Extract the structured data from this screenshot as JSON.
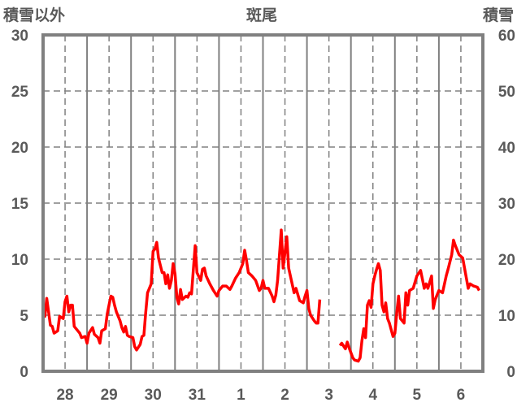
{
  "chart_data": {
    "type": "line",
    "title": "斑尾",
    "ylabel_left": "積雪以外",
    "ylabel_right": "積雪",
    "ylim_left": [
      0,
      30
    ],
    "ylim_right": [
      0,
      60
    ],
    "yticks_left": [
      "0",
      "5",
      "10",
      "15",
      "20",
      "25",
      "30"
    ],
    "yticks_right": [
      "0",
      "10",
      "20",
      "30",
      "40",
      "50",
      "60"
    ],
    "x_unit": "hours since start of day 28",
    "xlim": [
      0,
      240
    ],
    "xtick_labels": [
      "28",
      "29",
      "30",
      "31",
      "1",
      "2",
      "3",
      "4",
      "5",
      "6"
    ],
    "grid": true,
    "colors": {
      "series_other": "#ff0000",
      "series_snow": "#7030a0",
      "frame": "#808080",
      "text": "#595959"
    },
    "series": [
      {
        "name": "積雪以外",
        "axis": "left",
        "segments": [
          [
            [
              0,
              5.2
            ],
            [
              1,
              4.9
            ],
            [
              2,
              6.5
            ],
            [
              4,
              4.1
            ],
            [
              5,
              4.0
            ],
            [
              6,
              3.4
            ],
            [
              8,
              3.6
            ],
            [
              9,
              4.9
            ],
            [
              11,
              4.7
            ],
            [
              12,
              6.2
            ],
            [
              13,
              6.7
            ],
            [
              14,
              5.3
            ],
            [
              15,
              5.9
            ],
            [
              16,
              5.9
            ],
            [
              17,
              4.0
            ],
            [
              19,
              3.6
            ],
            [
              20,
              3.4
            ],
            [
              21,
              3.0
            ],
            [
              23,
              3.1
            ],
            [
              24,
              2.5
            ],
            [
              25,
              3.4
            ],
            [
              27,
              3.9
            ],
            [
              28,
              3.3
            ],
            [
              30,
              3.0
            ],
            [
              31,
              2.5
            ],
            [
              32,
              3.6
            ],
            [
              34,
              3.8
            ],
            [
              35,
              5.1
            ],
            [
              36,
              5.9
            ],
            [
              37,
              6.7
            ],
            [
              38,
              6.6
            ],
            [
              39,
              5.9
            ],
            [
              40,
              5.3
            ],
            [
              42,
              4.5
            ],
            [
              43,
              3.9
            ],
            [
              44,
              3.5
            ],
            [
              45,
              4.0
            ],
            [
              46,
              3.2
            ],
            [
              47,
              3.1
            ],
            [
              49,
              3.0
            ],
            [
              50,
              2.2
            ],
            [
              51,
              1.9
            ],
            [
              53,
              2.4
            ],
            [
              54,
              3.1
            ],
            [
              55,
              3.2
            ],
            [
              56,
              5.2
            ],
            [
              57,
              7.0
            ],
            [
              59,
              7.8
            ],
            [
              60,
              10.7
            ],
            [
              61,
              10.9
            ],
            [
              62,
              11.5
            ],
            [
              63,
              10.1
            ],
            [
              65,
              8.8
            ],
            [
              66,
              8.8
            ],
            [
              67,
              7.8
            ],
            [
              68,
              8.6
            ],
            [
              69,
              7.4
            ],
            [
              70,
              8.1
            ],
            [
              71,
              9.6
            ],
            [
              72,
              8.7
            ],
            [
              73,
              6.6
            ],
            [
              74,
              6.0
            ],
            [
              75,
              7.3
            ],
            [
              76,
              6.4
            ],
            [
              78,
              6.7
            ],
            [
              79,
              6.6
            ],
            [
              80,
              7.0
            ],
            [
              81,
              6.9
            ],
            [
              83,
              11.2
            ],
            [
              84,
              8.8
            ],
            [
              86,
              8.1
            ],
            [
              87,
              9.1
            ],
            [
              88,
              9.2
            ],
            [
              89,
              8.5
            ],
            [
              91,
              7.8
            ],
            [
              93,
              7.2
            ],
            [
              95,
              6.7
            ],
            [
              96,
              7.2
            ],
            [
              98,
              7.6
            ],
            [
              100,
              7.6
            ],
            [
              102,
              7.3
            ],
            [
              103,
              7.6
            ],
            [
              105,
              8.3
            ],
            [
              107,
              8.8
            ],
            [
              109,
              9.6
            ],
            [
              110,
              10.8
            ],
            [
              111,
              9.9
            ],
            [
              112,
              8.8
            ],
            [
              114,
              8.5
            ],
            [
              116,
              8.1
            ],
            [
              118,
              7.2
            ],
            [
              119,
              7.4
            ],
            [
              120,
              8.1
            ],
            [
              121,
              7.4
            ],
            [
              123,
              7.4
            ],
            [
              125,
              6.7
            ],
            [
              126,
              6.2
            ],
            [
              127,
              6.8
            ],
            [
              128,
              8.1
            ],
            [
              130,
              12.6
            ],
            [
              131,
              9.2
            ],
            [
              133,
              12.0
            ],
            [
              134,
              9.2
            ],
            [
              137,
              7.0
            ],
            [
              138,
              7.4
            ],
            [
              140,
              6.3
            ],
            [
              142,
              6.1
            ],
            [
              143,
              6.7
            ],
            [
              144,
              7.2
            ],
            [
              145,
              5.6
            ],
            [
              146,
              5.0
            ],
            [
              148,
              4.5
            ],
            [
              149,
              4.3
            ],
            [
              150,
              4.3
            ],
            [
              151,
              6.4
            ]
          ],
          [
            [
              162,
              2.3
            ],
            [
              163,
              2.5
            ],
            [
              165,
              2.0
            ],
            [
              166,
              2.6
            ],
            [
              167,
              2.1
            ],
            [
              169,
              1.2
            ],
            [
              170,
              1.0
            ],
            [
              172,
              0.9
            ],
            [
              173,
              1.2
            ],
            [
              174,
              2.7
            ],
            [
              175,
              3.8
            ],
            [
              176,
              3.0
            ],
            [
              177,
              5.9
            ],
            [
              178,
              6.3
            ],
            [
              179,
              5.7
            ],
            [
              180,
              7.8
            ],
            [
              181,
              8.5
            ],
            [
              182,
              9.1
            ],
            [
              183,
              9.6
            ],
            [
              184,
              9.0
            ],
            [
              185,
              5.9
            ],
            [
              186,
              5.3
            ],
            [
              187,
              6.1
            ],
            [
              188,
              4.7
            ],
            [
              189,
              4.3
            ],
            [
              191,
              3.1
            ],
            [
              192,
              3.4
            ],
            [
              193,
              5.2
            ],
            [
              194,
              6.7
            ],
            [
              195,
              4.7
            ],
            [
              197,
              4.3
            ],
            [
              198,
              7.0
            ],
            [
              199,
              5.9
            ],
            [
              200,
              7.2
            ],
            [
              202,
              7.4
            ],
            [
              204,
              8.5
            ],
            [
              206,
              9.0
            ],
            [
              208,
              7.4
            ],
            [
              209,
              7.8
            ],
            [
              210,
              7.4
            ],
            [
              212,
              8.5
            ],
            [
              213,
              5.6
            ],
            [
              214,
              6.4
            ],
            [
              216,
              7.2
            ],
            [
              218,
              7.0
            ],
            [
              220,
              8.5
            ],
            [
              221,
              9.1
            ],
            [
              223,
              10.4
            ],
            [
              224,
              11.7
            ],
            [
              225,
              11.2
            ],
            [
              227,
              10.4
            ],
            [
              229,
              10.1
            ],
            [
              232,
              7.4
            ],
            [
              233,
              7.8
            ],
            [
              235,
              7.6
            ],
            [
              237,
              7.5
            ],
            [
              238,
              7.2
            ]
          ]
        ]
      },
      {
        "name": "積雪",
        "axis": "right",
        "segments": [
          [
            [
              0,
              0
            ],
            [
              151,
              0
            ]
          ],
          [
            [
              162,
              0
            ],
            [
              240,
              0
            ]
          ]
        ]
      }
    ]
  }
}
